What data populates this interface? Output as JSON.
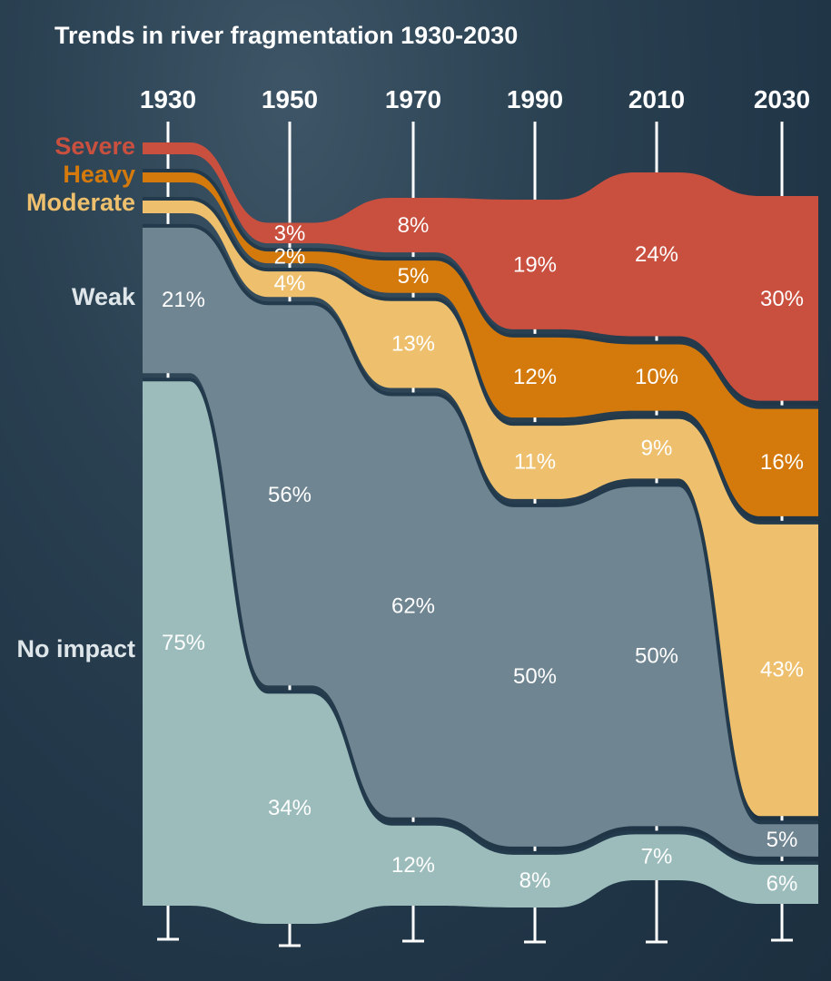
{
  "chart_data": {
    "type": "area",
    "title": "Trends in river fragmentation 1930-2030",
    "x": [
      "1930",
      "1950",
      "1970",
      "1990",
      "2010",
      "2030"
    ],
    "series": [
      {
        "name": "Severe",
        "color": "#c9503f",
        "values": [
          0,
          3,
          8,
          19,
          24,
          30
        ],
        "labels": [
          "",
          "3%",
          "8%",
          "19%",
          "24%",
          "30%"
        ]
      },
      {
        "name": "Heavy",
        "color": "#d47a0c",
        "values": [
          0,
          2,
          5,
          12,
          10,
          16
        ],
        "labels": [
          "",
          "2%",
          "5%",
          "12%",
          "10%",
          "16%"
        ]
      },
      {
        "name": "Moderate",
        "color": "#eec06e",
        "values": [
          0,
          4,
          13,
          11,
          9,
          43
        ],
        "labels": [
          "",
          "4%",
          "13%",
          "11%",
          "9%",
          "43%"
        ]
      },
      {
        "name": "Weak",
        "color": "#6f8592",
        "values": [
          21,
          56,
          62,
          50,
          50,
          5
        ],
        "labels": [
          "21%",
          "56%",
          "62%",
          "50%",
          "50%",
          "5%"
        ]
      },
      {
        "name": "No impact",
        "color": "#9bbcbb",
        "values": [
          75,
          34,
          12,
          8,
          7,
          6
        ],
        "labels": [
          "75%",
          "34%",
          "12%",
          "8%",
          "7%",
          "6%"
        ]
      }
    ],
    "series_label_colors": {
      "Severe": "#c9503f",
      "Heavy": "#d47a0c",
      "Moderate": "#eec06e",
      "Weak": "#dfe6ea",
      "No impact": "#dfe6ea"
    },
    "legend": "left, inline labels",
    "grid": false
  }
}
